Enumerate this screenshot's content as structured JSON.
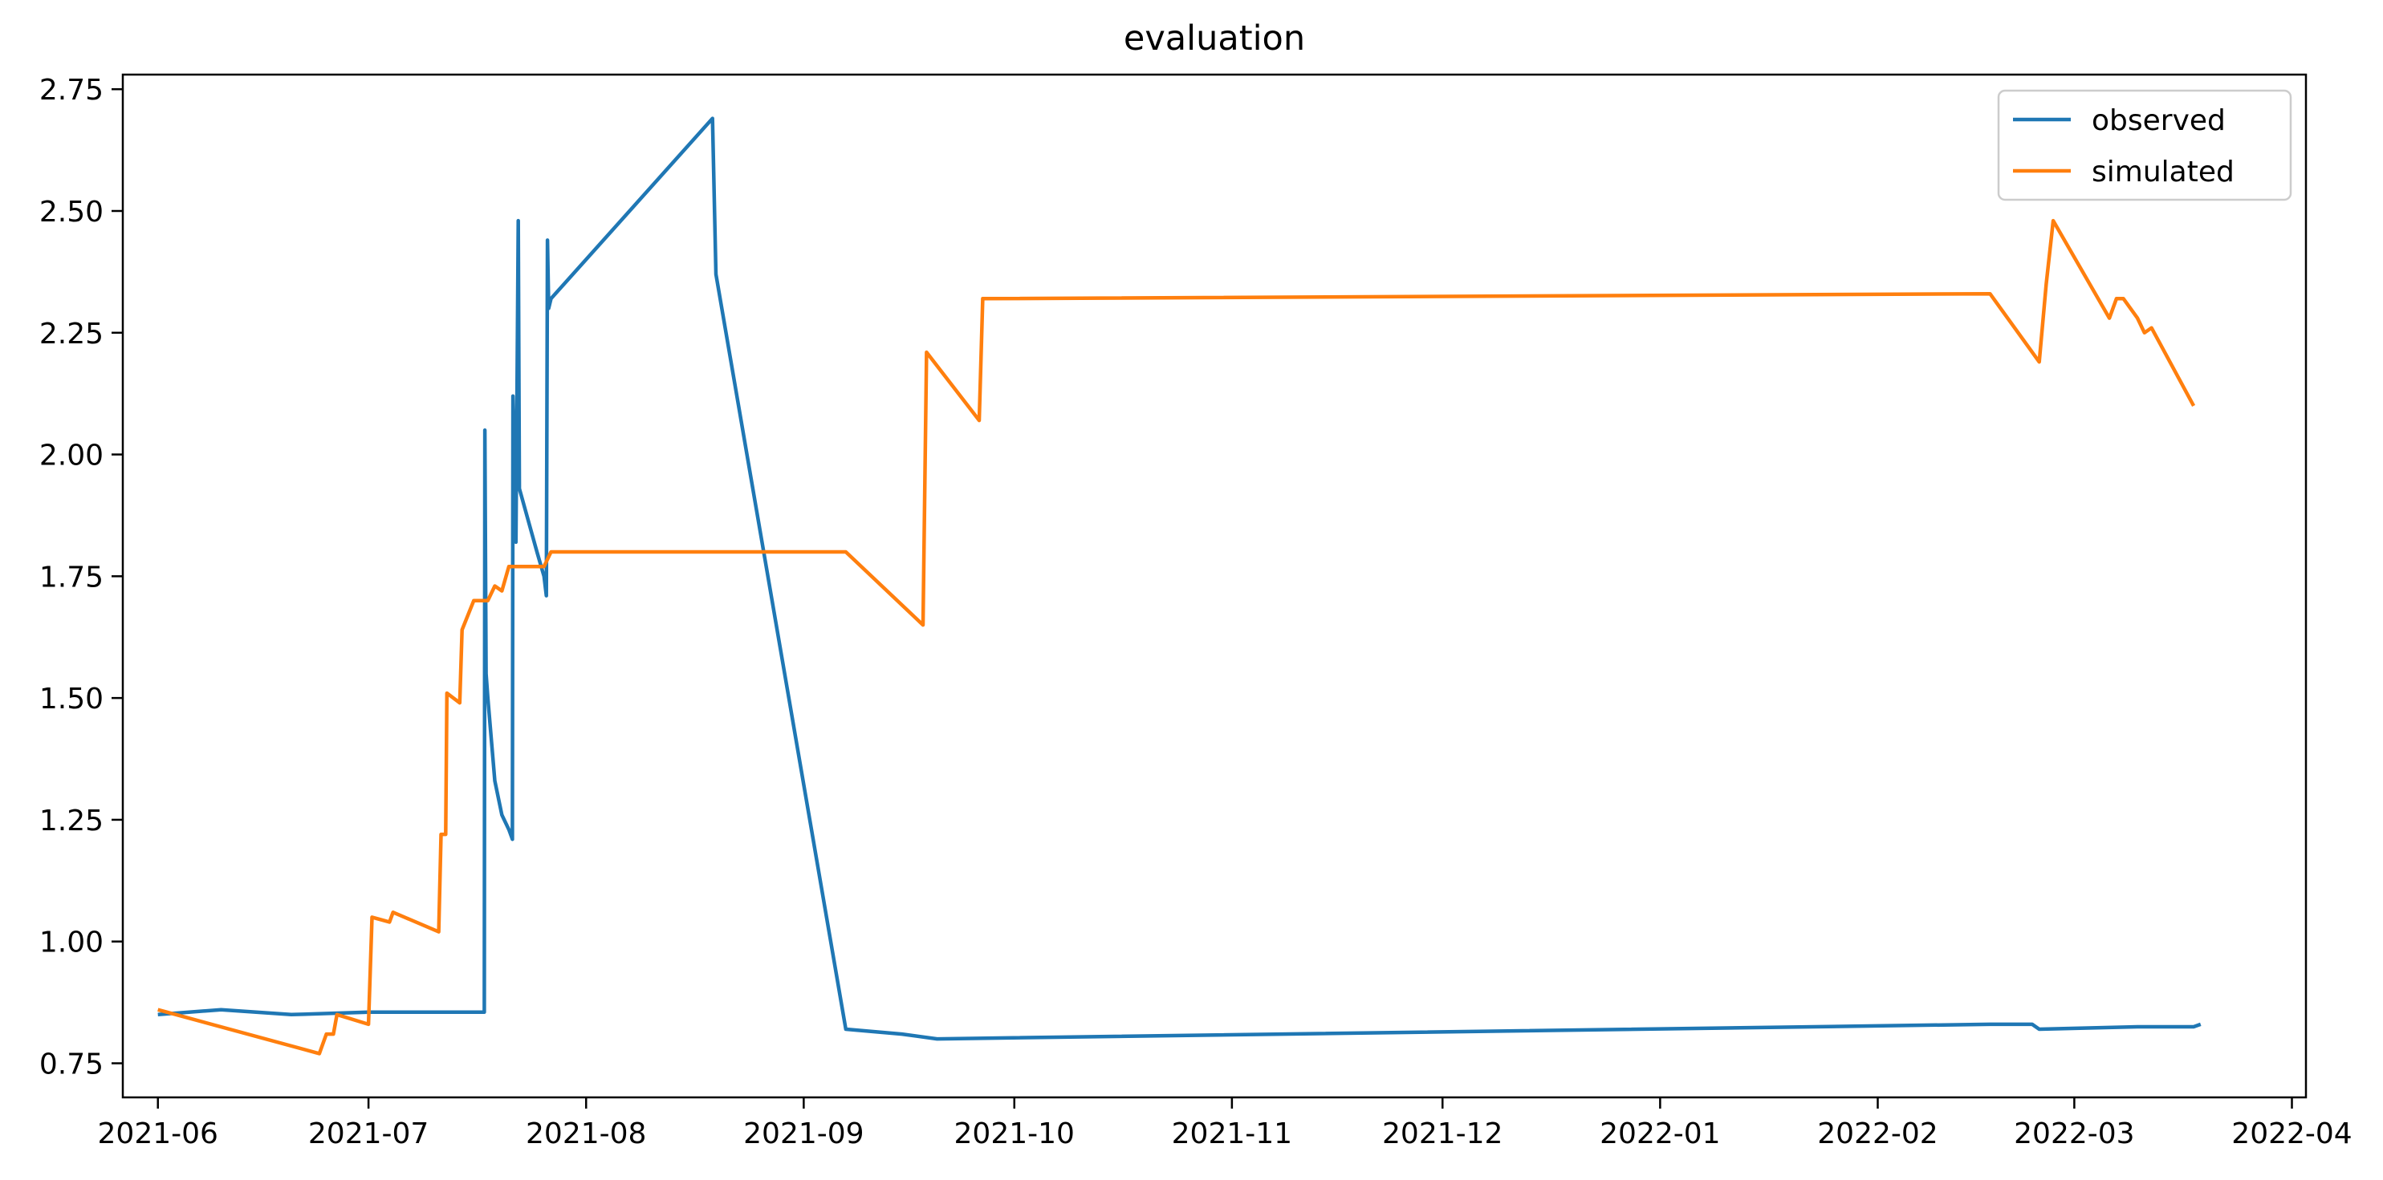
{
  "chart_data": {
    "type": "line",
    "title": "evaluation",
    "xlabel": "",
    "ylabel": "",
    "xlim": [
      "2021-05-27",
      "2022-04-03"
    ],
    "ylim": [
      0.68,
      2.78
    ],
    "x_ticks": [
      "2021-06",
      "2021-07",
      "2021-08",
      "2021-09",
      "2021-10",
      "2021-11",
      "2021-12",
      "2022-01",
      "2022-02",
      "2022-03",
      "2022-04"
    ],
    "y_ticks": [
      "0.75",
      "1.00",
      "1.25",
      "1.50",
      "1.75",
      "2.00",
      "2.25",
      "2.50",
      "2.75"
    ],
    "grid": false,
    "legend_position": "top-right",
    "series": [
      {
        "name": "observed",
        "color": "#1f77b4",
        "points": [
          [
            "2021-06-01",
            0.85
          ],
          [
            "2021-06-10",
            0.86
          ],
          [
            "2021-06-20",
            0.85
          ],
          [
            "2021-07-01",
            0.855
          ],
          [
            "2021-07-17",
            0.855
          ],
          [
            "2021-07-17T12",
            0.855
          ],
          [
            "2021-07-17T14",
            2.05
          ],
          [
            "2021-07-17T18",
            1.55
          ],
          [
            "2021-07-18",
            1.5
          ],
          [
            "2021-07-19",
            1.33
          ],
          [
            "2021-07-20",
            1.26
          ],
          [
            "2021-07-21",
            1.23
          ],
          [
            "2021-07-21T12",
            1.21
          ],
          [
            "2021-07-21T14",
            2.12
          ],
          [
            "2021-07-22",
            1.82
          ],
          [
            "2021-07-22T08",
            2.48
          ],
          [
            "2021-07-22T12",
            1.93
          ],
          [
            "2021-07-25",
            1.8
          ],
          [
            "2021-07-26",
            1.75
          ],
          [
            "2021-07-26T08",
            1.71
          ],
          [
            "2021-07-26T12",
            2.44
          ],
          [
            "2021-07-26T16",
            2.3
          ],
          [
            "2021-07-27",
            2.32
          ],
          [
            "2021-08-19",
            2.69
          ],
          [
            "2021-08-19T12",
            2.37
          ],
          [
            "2021-09-07",
            0.82
          ],
          [
            "2021-09-15",
            0.81
          ],
          [
            "2021-09-20",
            0.8
          ],
          [
            "2022-02-17",
            0.83
          ],
          [
            "2022-02-23",
            0.83
          ],
          [
            "2022-02-24",
            0.82
          ],
          [
            "2022-03-10",
            0.825
          ],
          [
            "2022-03-18",
            0.825
          ],
          [
            "2022-03-19",
            0.83
          ]
        ]
      },
      {
        "name": "simulated",
        "color": "#ff7f0e",
        "points": [
          [
            "2021-06-01",
            0.86
          ],
          [
            "2021-06-24",
            0.77
          ],
          [
            "2021-06-25",
            0.81
          ],
          [
            "2021-06-26",
            0.81
          ],
          [
            "2021-06-26T12",
            0.85
          ],
          [
            "2021-07-01",
            0.83
          ],
          [
            "2021-07-01T12",
            1.05
          ],
          [
            "2021-07-04",
            1.04
          ],
          [
            "2021-07-04T12",
            1.06
          ],
          [
            "2021-07-11",
            1.02
          ],
          [
            "2021-07-11T08",
            1.22
          ],
          [
            "2021-07-12",
            1.22
          ],
          [
            "2021-07-12T04",
            1.51
          ],
          [
            "2021-07-14",
            1.49
          ],
          [
            "2021-07-14T08",
            1.64
          ],
          [
            "2021-07-16",
            1.7
          ],
          [
            "2021-07-18",
            1.7
          ],
          [
            "2021-07-19",
            1.73
          ],
          [
            "2021-07-20",
            1.72
          ],
          [
            "2021-07-21",
            1.77
          ],
          [
            "2021-07-26",
            1.77
          ],
          [
            "2021-07-27",
            1.8
          ],
          [
            "2021-09-07",
            1.8
          ],
          [
            "2021-09-18",
            1.65
          ],
          [
            "2021-09-18T12",
            2.21
          ],
          [
            "2021-09-26",
            2.07
          ],
          [
            "2021-09-26T12",
            2.32
          ],
          [
            "2022-02-17",
            2.33
          ],
          [
            "2022-02-24",
            2.19
          ],
          [
            "2022-02-25",
            2.35
          ],
          [
            "2022-02-26",
            2.48
          ],
          [
            "2022-03-06",
            2.28
          ],
          [
            "2022-03-07",
            2.32
          ],
          [
            "2022-03-08",
            2.32
          ],
          [
            "2022-03-10",
            2.28
          ],
          [
            "2022-03-11",
            2.25
          ],
          [
            "2022-03-12",
            2.26
          ],
          [
            "2022-03-18",
            2.1
          ]
        ]
      }
    ]
  }
}
